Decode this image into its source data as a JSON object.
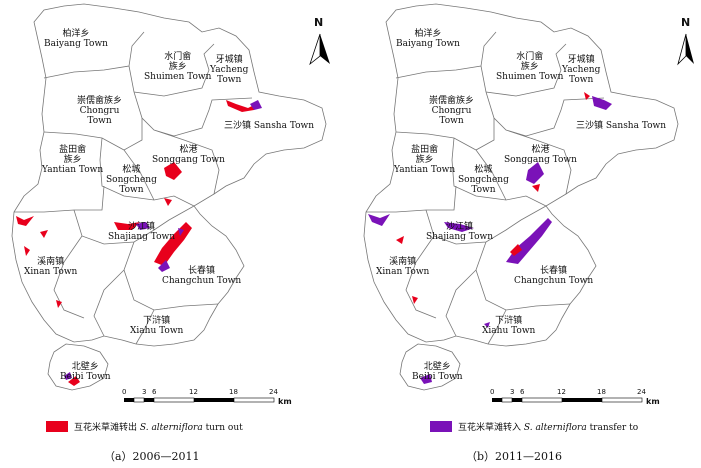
{
  "towns": {
    "baiyang": {
      "zh": "柏洋乡",
      "en": "Baiyang Town"
    },
    "shuimen": {
      "zh1": "水门畲",
      "zh2": "族乡",
      "en": "Shuimen Town"
    },
    "yacheng": {
      "zh": "牙城镇",
      "en1": "Yacheng",
      "en2": "Town"
    },
    "chongru": {
      "zh": "崇儒畲族乡",
      "en1": "Chongru",
      "en2": "Town"
    },
    "sansha": {
      "text": "三沙镇 Sansha Town"
    },
    "yantian": {
      "zh1": "盐田畲",
      "zh2": "族乡",
      "en": "Yantian Town"
    },
    "songgang": {
      "zh": "松港",
      "en": "Songgang Town"
    },
    "songcheng": {
      "zh": "松城",
      "en1": "Songcheng",
      "en2": "Town"
    },
    "shajiang": {
      "zh": "沙江镇",
      "en": "Shajiang Town"
    },
    "xinan": {
      "zh": "溪南镇",
      "en": "Xinan Town"
    },
    "changchun": {
      "zh": "长春镇",
      "en": "Changchun Town"
    },
    "xiahu": {
      "zh": "下浒镇",
      "en": "Xiahu Town"
    },
    "beibi": {
      "zh": "北壁乡",
      "en": "Beibi Town"
    }
  },
  "north_label": "N",
  "scale": {
    "ticks": [
      "0",
      "3",
      "6",
      "12",
      "18",
      "24"
    ],
    "unit": "km"
  },
  "panels": [
    {
      "legend_prefix": "互花米草滩转出 ",
      "legend_species": "S. alterniflora",
      "legend_suffix": " turn out",
      "legend_color": "#e8001c",
      "caption": "（a）2006—2011"
    },
    {
      "legend_prefix": "互花米草滩转入 ",
      "legend_species": "S. alterniflora",
      "legend_suffix": " transfer to",
      "legend_color": "#7a12b8",
      "caption": "（b）2011—2016"
    }
  ]
}
